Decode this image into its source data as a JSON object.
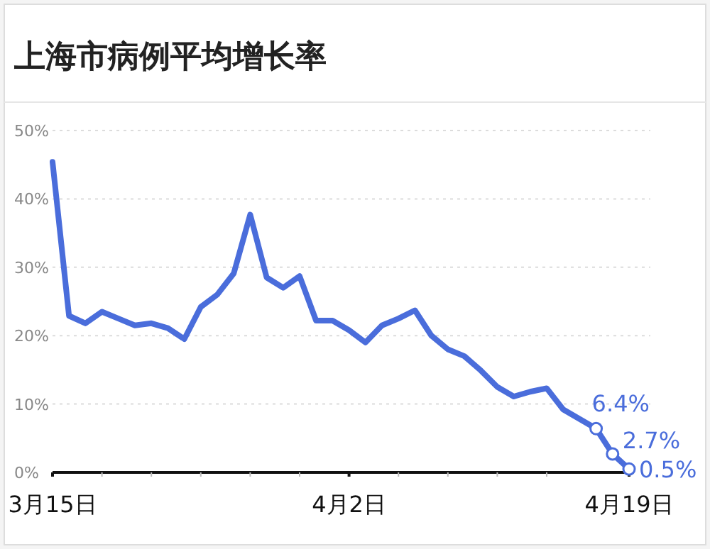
{
  "chart_data": {
    "type": "line",
    "title": "上海市病例平均增长率",
    "x": [
      "--03-15",
      "--03-16",
      "--03-17",
      "--03-18",
      "--03-19",
      "--03-20",
      "--03-21",
      "--03-22",
      "--03-23",
      "--03-24",
      "--03-25",
      "--03-26",
      "--03-27",
      "--03-28",
      "--03-29",
      "--03-30",
      "--03-31",
      "--04-01",
      "--04-02",
      "--04-03",
      "--04-04",
      "--04-05",
      "--04-06",
      "--04-07",
      "--04-08",
      "--04-09",
      "--04-10",
      "--04-11",
      "--04-12",
      "--04-13",
      "--04-14",
      "--04-15",
      "--04-16",
      "--04-17",
      "--04-18",
      "--04-19"
    ],
    "series": [
      {
        "color": "#4a6ddb",
        "values": [
          45.4,
          22.9,
          21.8,
          23.5,
          22.5,
          21.5,
          21.8,
          21.1,
          19.5,
          24.2,
          26,
          29.1,
          37.7,
          28.5,
          27,
          28.7,
          22.2,
          22.2,
          20.8,
          19,
          21.5,
          22.5,
          23.7,
          20,
          18,
          17,
          14.9,
          12.5,
          11.1,
          11.8,
          12.3,
          9.2,
          7.8,
          6.4,
          2.7,
          0.5
        ],
        "value_labels": [
          null,
          null,
          null,
          null,
          null,
          null,
          null,
          null,
          null,
          null,
          null,
          null,
          null,
          null,
          null,
          null,
          null,
          null,
          null,
          null,
          null,
          null,
          null,
          null,
          null,
          null,
          null,
          null,
          null,
          null,
          null,
          null,
          null,
          "6.4%",
          "2.7%",
          "0.5%"
        ]
      }
    ],
    "xlim": [
      "--03-15",
      "--04-19"
    ],
    "xticks": [
      {
        "value": "--03-15",
        "label": "3月15日"
      },
      {
        "value": "--03-18",
        "label": null
      },
      {
        "value": "--03-21",
        "label": null
      },
      {
        "value": "--03-24",
        "label": null
      },
      {
        "value": "--03-27",
        "label": null
      },
      {
        "value": "--03-30",
        "label": null
      },
      {
        "value": "--04-02",
        "label": "4月2日"
      },
      {
        "value": "--04-05",
        "label": null
      },
      {
        "value": "--04-08",
        "label": null
      },
      {
        "value": "--04-11",
        "label": null
      },
      {
        "value": "--04-14",
        "label": null
      },
      {
        "value": "--04-19",
        "label": "4月19日"
      }
    ],
    "ylim": [
      0,
      50
    ],
    "yticks": [
      {
        "value": 0,
        "label": "0%"
      },
      {
        "value": 10,
        "label": "10%"
      },
      {
        "value": 20,
        "label": "20%"
      },
      {
        "value": 30,
        "label": "30%"
      },
      {
        "value": 40,
        "label": "40%"
      },
      {
        "value": 50,
        "label": "50%"
      }
    ],
    "grid": "y"
  }
}
